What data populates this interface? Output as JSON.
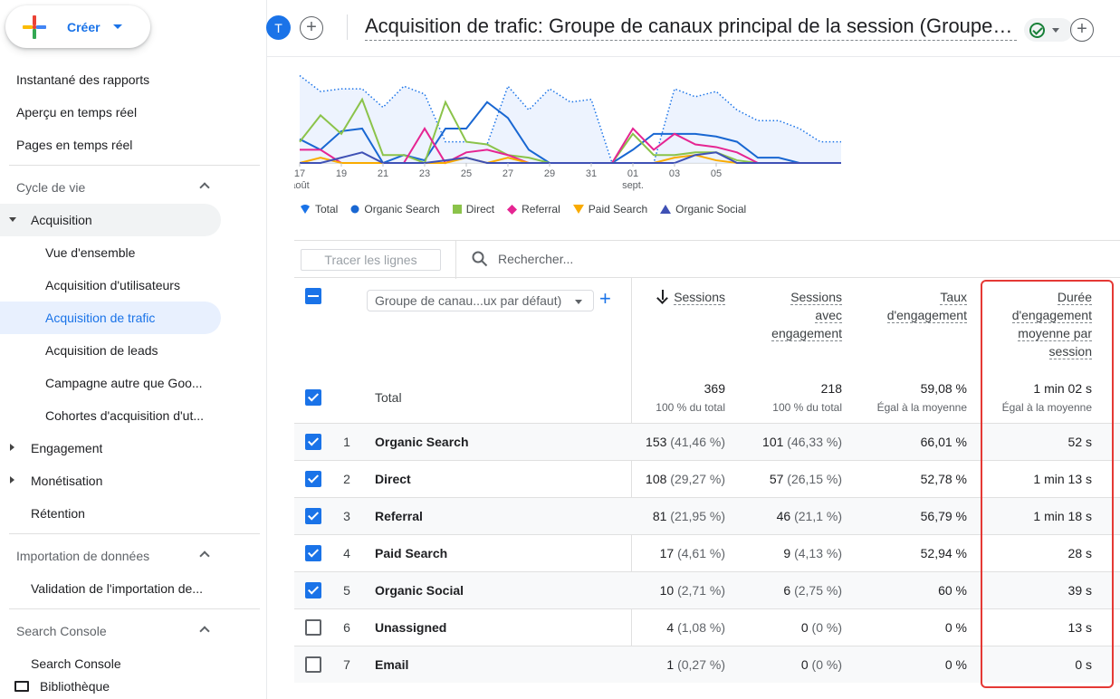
{
  "sidebar": {
    "create_label": "Créer",
    "items": [
      {
        "label": "Instantané des rapports"
      },
      {
        "label": "Aperçu en temps réel"
      },
      {
        "label": "Pages en temps réel"
      }
    ],
    "lifecycle_label": "Cycle de vie",
    "acquisition_label": "Acquisition",
    "acquisition_items": [
      {
        "label": "Vue d'ensemble"
      },
      {
        "label": "Acquisition d'utilisateurs"
      },
      {
        "label": "Acquisition de trafic"
      },
      {
        "label": "Acquisition de leads"
      },
      {
        "label": "Campagne autre que Goo..."
      },
      {
        "label": "Cohortes d'acquisition d'ut..."
      }
    ],
    "engagement_label": "Engagement",
    "monetisation_label": "Monétisation",
    "retention_label": "Rétention",
    "data_import_label": "Importation de données",
    "data_import_item": "Validation de l'importation de...",
    "search_console_label": "Search Console",
    "search_console_item": "Search Console",
    "library_label": "Bibliothèque"
  },
  "header": {
    "avatar_letter": "T",
    "title": "Acquisition de trafic: Groupe de canaux principal de la session (Groupe de canaux par défaut)"
  },
  "chart_data": {
    "type": "line",
    "x_ticks": [
      "17",
      "19",
      "21",
      "23",
      "25",
      "27",
      "29",
      "31",
      "01",
      "03",
      "05"
    ],
    "x_tick_sub": {
      "17": "août",
      "01": "sept."
    },
    "series": [
      {
        "name": "Total",
        "color": "#1a73e8",
        "style": "dotted-area",
        "values": [
          33,
          27,
          28,
          28,
          21,
          29,
          26,
          8,
          8,
          7,
          29,
          20,
          28,
          23,
          24,
          0,
          0,
          0,
          28,
          25,
          27,
          20,
          16,
          16,
          13,
          8,
          8
        ]
      },
      {
        "name": "Organic Search",
        "color": "#1967d2",
        "values": [
          9,
          5,
          12,
          13,
          0,
          3,
          1,
          13,
          13,
          23,
          17,
          5,
          0,
          0,
          0,
          0,
          5,
          11,
          11,
          11,
          10,
          8,
          2,
          2,
          0,
          0,
          0
        ]
      },
      {
        "name": "Direct",
        "color": "#8bc34a",
        "values": [
          8,
          18,
          11,
          24,
          3,
          3,
          0,
          23,
          8,
          7,
          3,
          2,
          0,
          0,
          0,
          0,
          11,
          3,
          3,
          4,
          4,
          1,
          0,
          0,
          0,
          0,
          0
        ]
      },
      {
        "name": "Referral",
        "color": "#e52592",
        "values": [
          5,
          5,
          0,
          0,
          0,
          0,
          13,
          0,
          4,
          5,
          3,
          0,
          0,
          0,
          0,
          0,
          13,
          5,
          11,
          7,
          6,
          4,
          0,
          0,
          0,
          0,
          0
        ]
      },
      {
        "name": "Paid Search",
        "color": "#f9ab00",
        "values": [
          0,
          2,
          0,
          0,
          0,
          0,
          0,
          0,
          2,
          0,
          2,
          0,
          0,
          0,
          0,
          0,
          0,
          0,
          2,
          3,
          1,
          0,
          0,
          0,
          0,
          0,
          0
        ]
      },
      {
        "name": "Organic Social",
        "color": "#3f51b5",
        "values": [
          0,
          0,
          2,
          4,
          0,
          0,
          0,
          1,
          2,
          0,
          0,
          0,
          0,
          0,
          0,
          0,
          0,
          0,
          0,
          3,
          4,
          0,
          0,
          0,
          0,
          0,
          0
        ]
      }
    ]
  },
  "legend": [
    {
      "name": "Total"
    },
    {
      "name": "Organic Search"
    },
    {
      "name": "Direct"
    },
    {
      "name": "Referral"
    },
    {
      "name": "Paid Search"
    },
    {
      "name": "Organic Social"
    }
  ],
  "table": {
    "trace_lines_label": "Tracer les lignes",
    "search_placeholder": "Rechercher...",
    "dimension_select": "Groupe de canau...ux par défaut)",
    "columns": {
      "sessions": "Sessions",
      "engaged_sessions": "Sessions avec engagement",
      "engagement_rate": "Taux d'engagement",
      "avg_engagement_time": "Durée d'engagement moyenne par session"
    },
    "total_label": "Total",
    "totals": {
      "sessions": "369",
      "sessions_sub": "100 % du total",
      "engaged": "218",
      "engaged_sub": "100 % du total",
      "rate": "59,08 %",
      "rate_sub": "Égal à la moyenne",
      "duration": "1 min 02 s",
      "duration_sub": "Égal à la moyenne"
    },
    "rows": [
      {
        "idx": "1",
        "name": "Organic Search",
        "checked": true,
        "sessions": "153",
        "sessions_pct": "(41,46 %)",
        "engaged": "101",
        "engaged_pct": "(46,33 %)",
        "rate": "66,01 %",
        "duration": "52 s"
      },
      {
        "idx": "2",
        "name": "Direct",
        "checked": true,
        "sessions": "108",
        "sessions_pct": "(29,27 %)",
        "engaged": "57",
        "engaged_pct": "(26,15 %)",
        "rate": "52,78 %",
        "duration": "1 min 13 s"
      },
      {
        "idx": "3",
        "name": "Referral",
        "checked": true,
        "sessions": "81",
        "sessions_pct": "(21,95 %)",
        "engaged": "46",
        "engaged_pct": "(21,1 %)",
        "rate": "56,79 %",
        "duration": "1 min 18 s"
      },
      {
        "idx": "4",
        "name": "Paid Search",
        "checked": true,
        "sessions": "17",
        "sessions_pct": "(4,61 %)",
        "engaged": "9",
        "engaged_pct": "(4,13 %)",
        "rate": "52,94 %",
        "duration": "28 s"
      },
      {
        "idx": "5",
        "name": "Organic Social",
        "checked": true,
        "sessions": "10",
        "sessions_pct": "(2,71 %)",
        "engaged": "6",
        "engaged_pct": "(2,75 %)",
        "rate": "60 %",
        "duration": "39 s"
      },
      {
        "idx": "6",
        "name": "Unassigned",
        "checked": false,
        "sessions": "4",
        "sessions_pct": "(1,08 %)",
        "engaged": "0",
        "engaged_pct": "(0 %)",
        "rate": "0 %",
        "duration": "13 s"
      },
      {
        "idx": "7",
        "name": "Email",
        "checked": false,
        "sessions": "1",
        "sessions_pct": "(0,27 %)",
        "engaged": "0",
        "engaged_pct": "(0 %)",
        "rate": "0 %",
        "duration": "0 s"
      }
    ]
  }
}
